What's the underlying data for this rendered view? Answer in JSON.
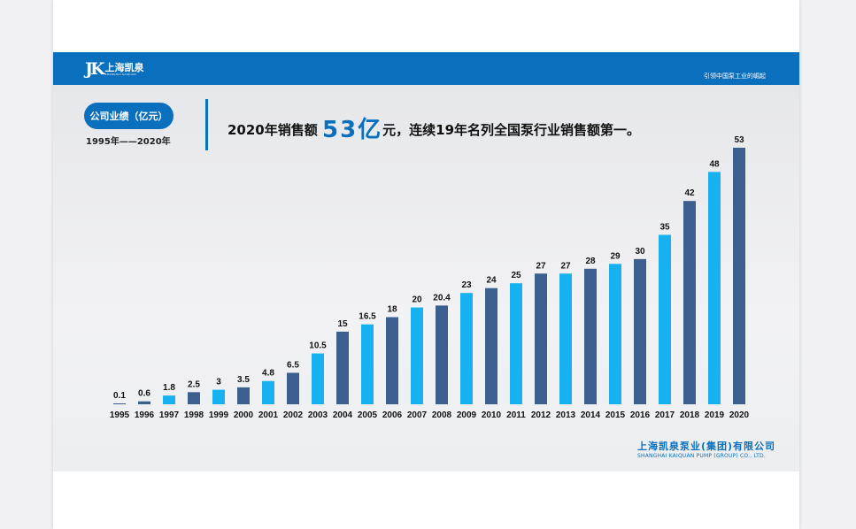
{
  "header": {
    "logo_mark": "JK",
    "logo_name": "上海凯泉",
    "logo_sub": "SHANGHAI KAIQUAN",
    "slogan": "引领中国泵工业的崛起"
  },
  "badge": "公司业绩（亿元）",
  "range": "1995年——2020年",
  "headline": {
    "before": "2020年销售额 ",
    "big": "53亿",
    "after": "元，连续19年名列全国泵行业销售额第一。"
  },
  "company": {
    "cn": "上海凯泉泵业(集团)有限公司",
    "en": "SHANGHAI KAIQUAN PUMP (GROUP) CO., LTD."
  },
  "colors": {
    "dark": "#3b5f8f",
    "light": "#16b1ee",
    "brand": "#0a6fbd"
  },
  "chart_data": {
    "type": "bar",
    "categories": [
      "1995",
      "1996",
      "1997",
      "1998",
      "1999",
      "2000",
      "2001",
      "2002",
      "2003",
      "2004",
      "2005",
      "2006",
      "2007",
      "2008",
      "2009",
      "2010",
      "2011",
      "2012",
      "2013",
      "2014",
      "2015",
      "2016",
      "2017",
      "2018",
      "2019",
      "2020"
    ],
    "values": [
      0.1,
      0.6,
      1.8,
      2.5,
      3,
      3.5,
      4.8,
      6.5,
      10.5,
      15,
      16.5,
      18,
      20,
      20.4,
      23,
      24,
      25,
      27,
      27,
      28,
      29,
      30,
      35,
      42,
      48,
      53
    ],
    "labels": [
      "0.1",
      "0.6",
      "1.8",
      "2.5",
      "3",
      "3.5",
      "4.8",
      "6.5",
      "10.5",
      "15",
      "16.5",
      "18",
      "20",
      "20.4",
      "23",
      "24",
      "25",
      "27",
      "27",
      "28",
      "29",
      "30",
      "35",
      "42",
      "48",
      "53"
    ],
    "bar_colors": [
      "dark",
      "dark",
      "light",
      "dark",
      "light",
      "dark",
      "light",
      "dark",
      "light",
      "dark",
      "light",
      "dark",
      "light",
      "dark",
      "light",
      "dark",
      "light",
      "dark",
      "light",
      "dark",
      "light",
      "dark",
      "light",
      "dark",
      "light",
      "dark"
    ],
    "ylim": [
      0,
      53
    ],
    "grid": false,
    "legend": "none"
  }
}
